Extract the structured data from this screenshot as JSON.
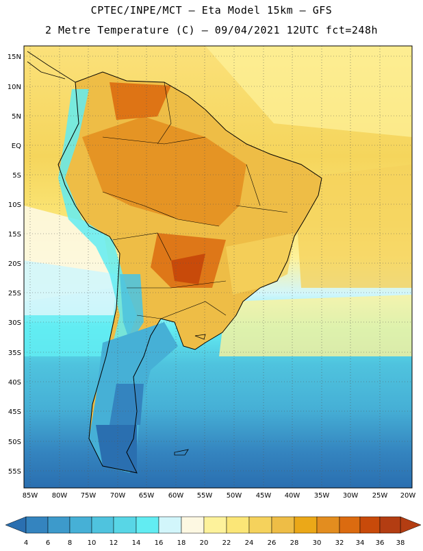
{
  "header": {
    "line1": "CPTEC/INPE/MCT –  Eta Model 15km – GFS",
    "line2": "2 Metre Temperature (C) – 09/04/2021 12UTC fct=248h"
  },
  "map": {
    "lat_labels": [
      "15N",
      "10N",
      "5N",
      "EQ",
      "5S",
      "10S",
      "15S",
      "20S",
      "25S",
      "30S",
      "35S",
      "40S",
      "45S",
      "50S",
      "55S"
    ],
    "lon_labels": [
      "85W",
      "80W",
      "75W",
      "70W",
      "65W",
      "60W",
      "55W",
      "50W",
      "45W",
      "40W",
      "35W",
      "30W",
      "25W",
      "20W"
    ]
  },
  "colorbar": {
    "labels": [
      "4",
      "6",
      "8",
      "10",
      "12",
      "14",
      "16",
      "18",
      "20",
      "22",
      "24",
      "26",
      "28",
      "30",
      "32",
      "34",
      "36",
      "38"
    ],
    "colors": [
      "#2a6fb0",
      "#3484bf",
      "#3d9acb",
      "#46b0d6",
      "#4fc3de",
      "#58d6e6",
      "#62ecf2",
      "#d2f6fb",
      "#fdf8e2",
      "#fdf29b",
      "#fbe677",
      "#f5d25c",
      "#eebd46",
      "#eba818",
      "#e38d1f",
      "#db6b10",
      "#c84a0a",
      "#b33d12"
    ]
  }
}
